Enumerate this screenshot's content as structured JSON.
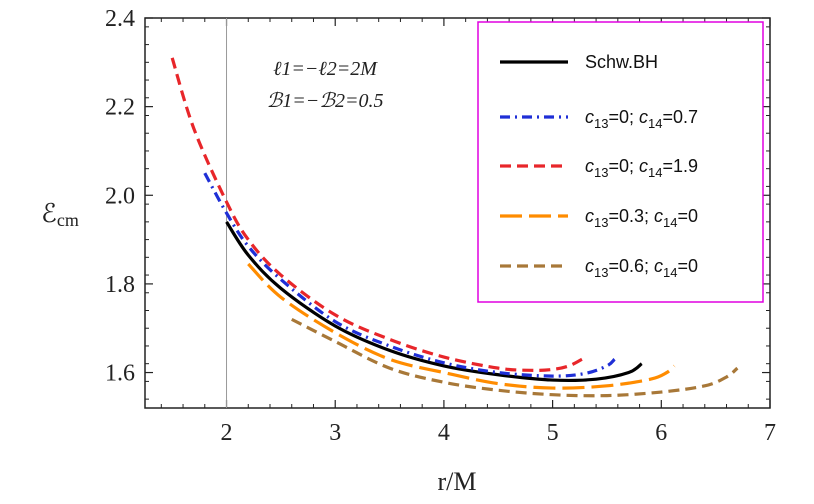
{
  "chart_data": {
    "type": "line",
    "xlabel": "r/M",
    "ylabel": "ℰcm",
    "xlim": [
      1.25,
      7.0
    ],
    "ylim": [
      1.52,
      2.4
    ],
    "x_ticks": [
      2,
      3,
      4,
      5,
      6,
      7
    ],
    "y_ticks": [
      1.6,
      1.8,
      2.0,
      2.2,
      2.4
    ],
    "x_tick_labels": [
      "2",
      "3",
      "4",
      "5",
      "6",
      "7"
    ],
    "y_tick_labels": [
      "1.6",
      "1.8",
      "2.0",
      "2.2",
      "2.4"
    ],
    "vertical_line_x": 2,
    "annotations": [
      "ℓ1=−ℓ2=2M",
      "ℬ1=−ℬ2=0.5"
    ],
    "legend_position": "top-right",
    "series": [
      {
        "name": "Schw.BH",
        "color": "#000000",
        "dash": "solid",
        "points": [
          [
            2.0,
            1.94
          ],
          [
            2.2,
            1.865
          ],
          [
            2.5,
            1.79
          ],
          [
            3.0,
            1.705
          ],
          [
            3.5,
            1.65
          ],
          [
            4.0,
            1.615
          ],
          [
            4.5,
            1.595
          ],
          [
            5.0,
            1.583
          ],
          [
            5.4,
            1.585
          ],
          [
            5.7,
            1.6
          ],
          [
            5.82,
            1.62
          ]
        ]
      },
      {
        "name": "c13=0; c14=0.7",
        "color": "#1f2fd6",
        "dash": "dashdot",
        "points": [
          [
            1.8,
            2.05
          ],
          [
            2.0,
            1.96
          ],
          [
            2.2,
            1.885
          ],
          [
            2.5,
            1.81
          ],
          [
            3.0,
            1.715
          ],
          [
            3.5,
            1.66
          ],
          [
            4.0,
            1.622
          ],
          [
            4.5,
            1.6
          ],
          [
            5.0,
            1.592
          ],
          [
            5.3,
            1.598
          ],
          [
            5.5,
            1.615
          ],
          [
            5.57,
            1.63
          ]
        ]
      },
      {
        "name": "c13=0; c14=1.9",
        "color": "#e8262a",
        "dash": "dashed",
        "points": [
          [
            1.5,
            2.31
          ],
          [
            1.7,
            2.15
          ],
          [
            2.0,
            1.985
          ],
          [
            2.2,
            1.9
          ],
          [
            2.5,
            1.82
          ],
          [
            3.0,
            1.73
          ],
          [
            3.5,
            1.675
          ],
          [
            4.0,
            1.635
          ],
          [
            4.5,
            1.61
          ],
          [
            4.8,
            1.605
          ],
          [
            5.0,
            1.607
          ],
          [
            5.15,
            1.615
          ],
          [
            5.27,
            1.63
          ]
        ]
      },
      {
        "name": "c13=0.3; c14=0",
        "color": "#ff8c00",
        "dash": "longdash",
        "points": [
          [
            2.2,
            1.845
          ],
          [
            2.5,
            1.77
          ],
          [
            3.0,
            1.69
          ],
          [
            3.5,
            1.63
          ],
          [
            4.0,
            1.6
          ],
          [
            4.5,
            1.575
          ],
          [
            5.0,
            1.565
          ],
          [
            5.5,
            1.57
          ],
          [
            5.9,
            1.585
          ],
          [
            6.05,
            1.6
          ],
          [
            6.12,
            1.615
          ]
        ]
      },
      {
        "name": "c13=0.6; c14=0",
        "color": "#a87838",
        "dash": "dashed",
        "points": [
          [
            2.6,
            1.72
          ],
          [
            3.0,
            1.67
          ],
          [
            3.5,
            1.61
          ],
          [
            4.0,
            1.578
          ],
          [
            4.5,
            1.56
          ],
          [
            5.0,
            1.55
          ],
          [
            5.5,
            1.548
          ],
          [
            6.0,
            1.556
          ],
          [
            6.4,
            1.57
          ],
          [
            6.6,
            1.59
          ],
          [
            6.7,
            1.61
          ]
        ]
      }
    ],
    "legend_labels": [
      {
        "main": "Schw.BH"
      },
      {
        "main": "c",
        "sub1": "13",
        "mid": "=0; c",
        "sub2": "14",
        "end": "=0.7"
      },
      {
        "main": "c",
        "sub1": "13",
        "mid": "=0; c",
        "sub2": "14",
        "end": "=1.9"
      },
      {
        "main": "c",
        "sub1": "13",
        "mid": "=0.3; c",
        "sub2": "14",
        "end": "=0"
      },
      {
        "main": "c",
        "sub1": "13",
        "mid": "=0.6; c",
        "sub2": "14",
        "end": "=0"
      }
    ]
  }
}
